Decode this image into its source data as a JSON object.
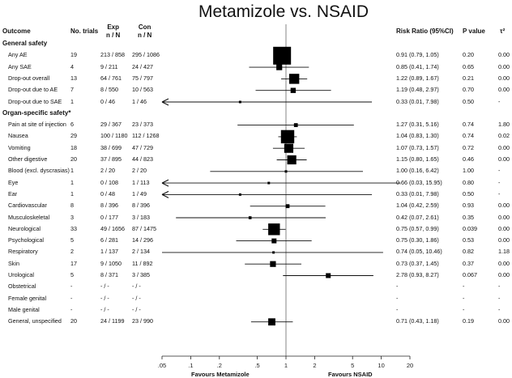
{
  "chart_data": {
    "type": "forest",
    "title": "Metamizole vs. NSAID",
    "columns": {
      "outcome": "Outcome",
      "trials": "No. trials",
      "exp": "Exp\nn / N",
      "con": "Con\nn / N",
      "rr": "Risk Ratio (95%CI)",
      "p": "P value",
      "tau": "τ²"
    },
    "x_ticks": [
      ".05",
      ".1",
      ".2",
      ".5",
      "1",
      "2",
      "5",
      "10",
      "20"
    ],
    "x_tick_values": [
      0.05,
      0.1,
      0.2,
      0.5,
      1,
      2,
      5,
      10,
      20
    ],
    "xlim": [
      0.05,
      20
    ],
    "scale": "log",
    "xlabel_left": "Favours Metamizole",
    "xlabel_right": "Favours NSAID",
    "rows": [
      {
        "section": "General safety"
      },
      {
        "label": "Any AE",
        "n": "19",
        "exp": "213 / 858",
        "con": "295 / 1086",
        "rr": 0.91,
        "lo": 0.79,
        "hi": 1.05,
        "rr_text": "0.91 (0.79, 1.05)",
        "p": "0.20",
        "tau": "0.00",
        "weight": 1.0
      },
      {
        "label": "Any SAE",
        "n": "4",
        "exp": "9 / 211",
        "con": "24 / 427",
        "rr": 0.85,
        "lo": 0.41,
        "hi": 1.74,
        "rr_text": "0.85 (0.41, 1.74)",
        "p": "0.65",
        "tau": "0.00",
        "weight": 0.26
      },
      {
        "label": "Drop-out overall",
        "n": "13",
        "exp": "64 / 761",
        "con": "75 / 797",
        "rr": 1.22,
        "lo": 0.89,
        "hi": 1.67,
        "rr_text": "1.22 (0.89, 1.67)",
        "p": "0.21",
        "tau": "0.00",
        "weight": 0.52
      },
      {
        "label": "Drop-out due to AE",
        "n": "7",
        "exp": "8 / 550",
        "con": "10 / 563",
        "rr": 1.19,
        "lo": 0.48,
        "hi": 2.97,
        "rr_text": "1.19 (0.48, 2.97)",
        "p": "0.70",
        "tau": "0.00",
        "weight": 0.22
      },
      {
        "label": "Drop-out due to SAE",
        "n": "1",
        "exp": "0 / 46",
        "con": "1 / 46",
        "rr": 0.33,
        "lo": 0.01,
        "hi": 7.98,
        "rr_text": "0.33 (0.01, 7.98)",
        "p": "0.50",
        "tau": "-",
        "weight": 0.05
      },
      {
        "section": "Organ-specific safety*"
      },
      {
        "label": "Pain at site of injection",
        "n": "6",
        "exp": "29 / 367",
        "con": "23 / 373",
        "rr": 1.27,
        "lo": 0.31,
        "hi": 5.16,
        "rr_text": "1.27 (0.31, 5.16)",
        "p": "0.74",
        "tau": "1.80",
        "weight": 0.14
      },
      {
        "label": "Nausea",
        "n": "29",
        "exp": "100 / 1180",
        "con": "112 / 1268",
        "rr": 1.04,
        "lo": 0.83,
        "hi": 1.3,
        "rr_text": "1.04 (0.83, 1.30)",
        "p": "0.74",
        "tau": "0.02",
        "weight": 0.72
      },
      {
        "label": "Vomiting",
        "n": "18",
        "exp": "38 / 699",
        "con": "47 / 729",
        "rr": 1.07,
        "lo": 0.73,
        "hi": 1.57,
        "rr_text": "1.07 (0.73, 1.57)",
        "p": "0.72",
        "tau": "0.00",
        "weight": 0.46
      },
      {
        "label": "Other digestive",
        "n": "20",
        "exp": "37 / 895",
        "con": "44 / 823",
        "rr": 1.15,
        "lo": 0.8,
        "hi": 1.65,
        "rr_text": "1.15 (0.80, 1.65)",
        "p": "0.46",
        "tau": "0.00",
        "weight": 0.46
      },
      {
        "label": "Blood (excl. dyscrasias)",
        "n": "1",
        "exp": "2 / 20",
        "con": "2 / 20",
        "rr": 1.0,
        "lo": 0.16,
        "hi": 6.42,
        "rr_text": "1.00 (0.16, 6.42)",
        "p": "1.00",
        "tau": "-",
        "weight": 0.05
      },
      {
        "label": "Eye",
        "n": "1",
        "exp": "0 / 108",
        "con": "1 / 113",
        "rr": 0.66,
        "lo": 0.03,
        "hi": 15.95,
        "rr_text": "0.66 (0.03, 15.95)",
        "p": "0.80",
        "tau": "-",
        "weight": 0.05
      },
      {
        "label": "Ear",
        "n": "1",
        "exp": "0 / 48",
        "con": "1 / 49",
        "rr": 0.33,
        "lo": 0.01,
        "hi": 7.98,
        "rr_text": "0.33 (0.01, 7.98)",
        "p": "0.50",
        "tau": "-",
        "weight": 0.05
      },
      {
        "label": "Cardiovascular",
        "n": "8",
        "exp": "8 / 396",
        "con": "8 / 396",
        "rr": 1.04,
        "lo": 0.42,
        "hi": 2.59,
        "rr_text": "1.04 (0.42, 2.59)",
        "p": "0.93",
        "tau": "0.00",
        "weight": 0.14
      },
      {
        "label": "Musculoskeletal",
        "n": "3",
        "exp": "0 / 177",
        "con": "3 / 183",
        "rr": 0.42,
        "lo": 0.07,
        "hi": 2.61,
        "rr_text": "0.42 (0.07, 2.61)",
        "p": "0.35",
        "tau": "0.00",
        "weight": 0.08
      },
      {
        "label": "Neurological",
        "n": "33",
        "exp": "49 / 1656",
        "con": "87 / 1475",
        "rr": 0.75,
        "lo": 0.57,
        "hi": 0.99,
        "rr_text": "0.75 (0.57, 0.99)",
        "p": "0.039",
        "tau": "0.00",
        "weight": 0.62
      },
      {
        "label": "Psychological",
        "n": "5",
        "exp": "6 / 281",
        "con": "14 / 296",
        "rr": 0.75,
        "lo": 0.3,
        "hi": 1.86,
        "rr_text": "0.75 (0.30, 1.86)",
        "p": "0.53",
        "tau": "0.00",
        "weight": 0.2
      },
      {
        "label": "Respiratory",
        "n": "2",
        "exp": "1 / 137",
        "con": "2 / 134",
        "rr": 0.74,
        "lo": 0.05,
        "hi": 10.46,
        "rr_text": "0.74 (0.05, 10.46)",
        "p": "0.82",
        "tau": "1.18",
        "weight": 0.05
      },
      {
        "label": "Skin",
        "n": "17",
        "exp": "9 / 1050",
        "con": "11 / 892",
        "rr": 0.73,
        "lo": 0.37,
        "hi": 1.45,
        "rr_text": "0.73 (0.37, 1.45)",
        "p": "0.37",
        "tau": "0.00",
        "weight": 0.26
      },
      {
        "label": "Urological",
        "n": "5",
        "exp": "8 / 371",
        "con": "3 / 385",
        "rr": 2.78,
        "lo": 0.93,
        "hi": 8.27,
        "rr_text": "2.78 (0.93, 8.27)",
        "p": "0.067",
        "tau": "0.00",
        "weight": 0.2
      },
      {
        "label": "Obstetrical",
        "n": "-",
        "exp": "- / -",
        "con": "- / -",
        "rr": null,
        "rr_text": "-",
        "p": "-",
        "tau": "-"
      },
      {
        "label": "Female genital",
        "n": "-",
        "exp": "- / -",
        "con": "- / -",
        "rr": null,
        "rr_text": "-",
        "p": "-",
        "tau": "-"
      },
      {
        "label": "Male genital",
        "n": "-",
        "exp": "- / -",
        "con": "- / -",
        "rr": null,
        "rr_text": "-",
        "p": "-",
        "tau": "-"
      },
      {
        "label": "General, unspecified",
        "n": "20",
        "exp": "24 / 1199",
        "con": "23 / 990",
        "rr": 0.71,
        "lo": 0.43,
        "hi": 1.18,
        "rr_text": "0.71 (0.43, 1.18)",
        "p": "0.19",
        "tau": "0.00",
        "weight": 0.34
      }
    ]
  }
}
